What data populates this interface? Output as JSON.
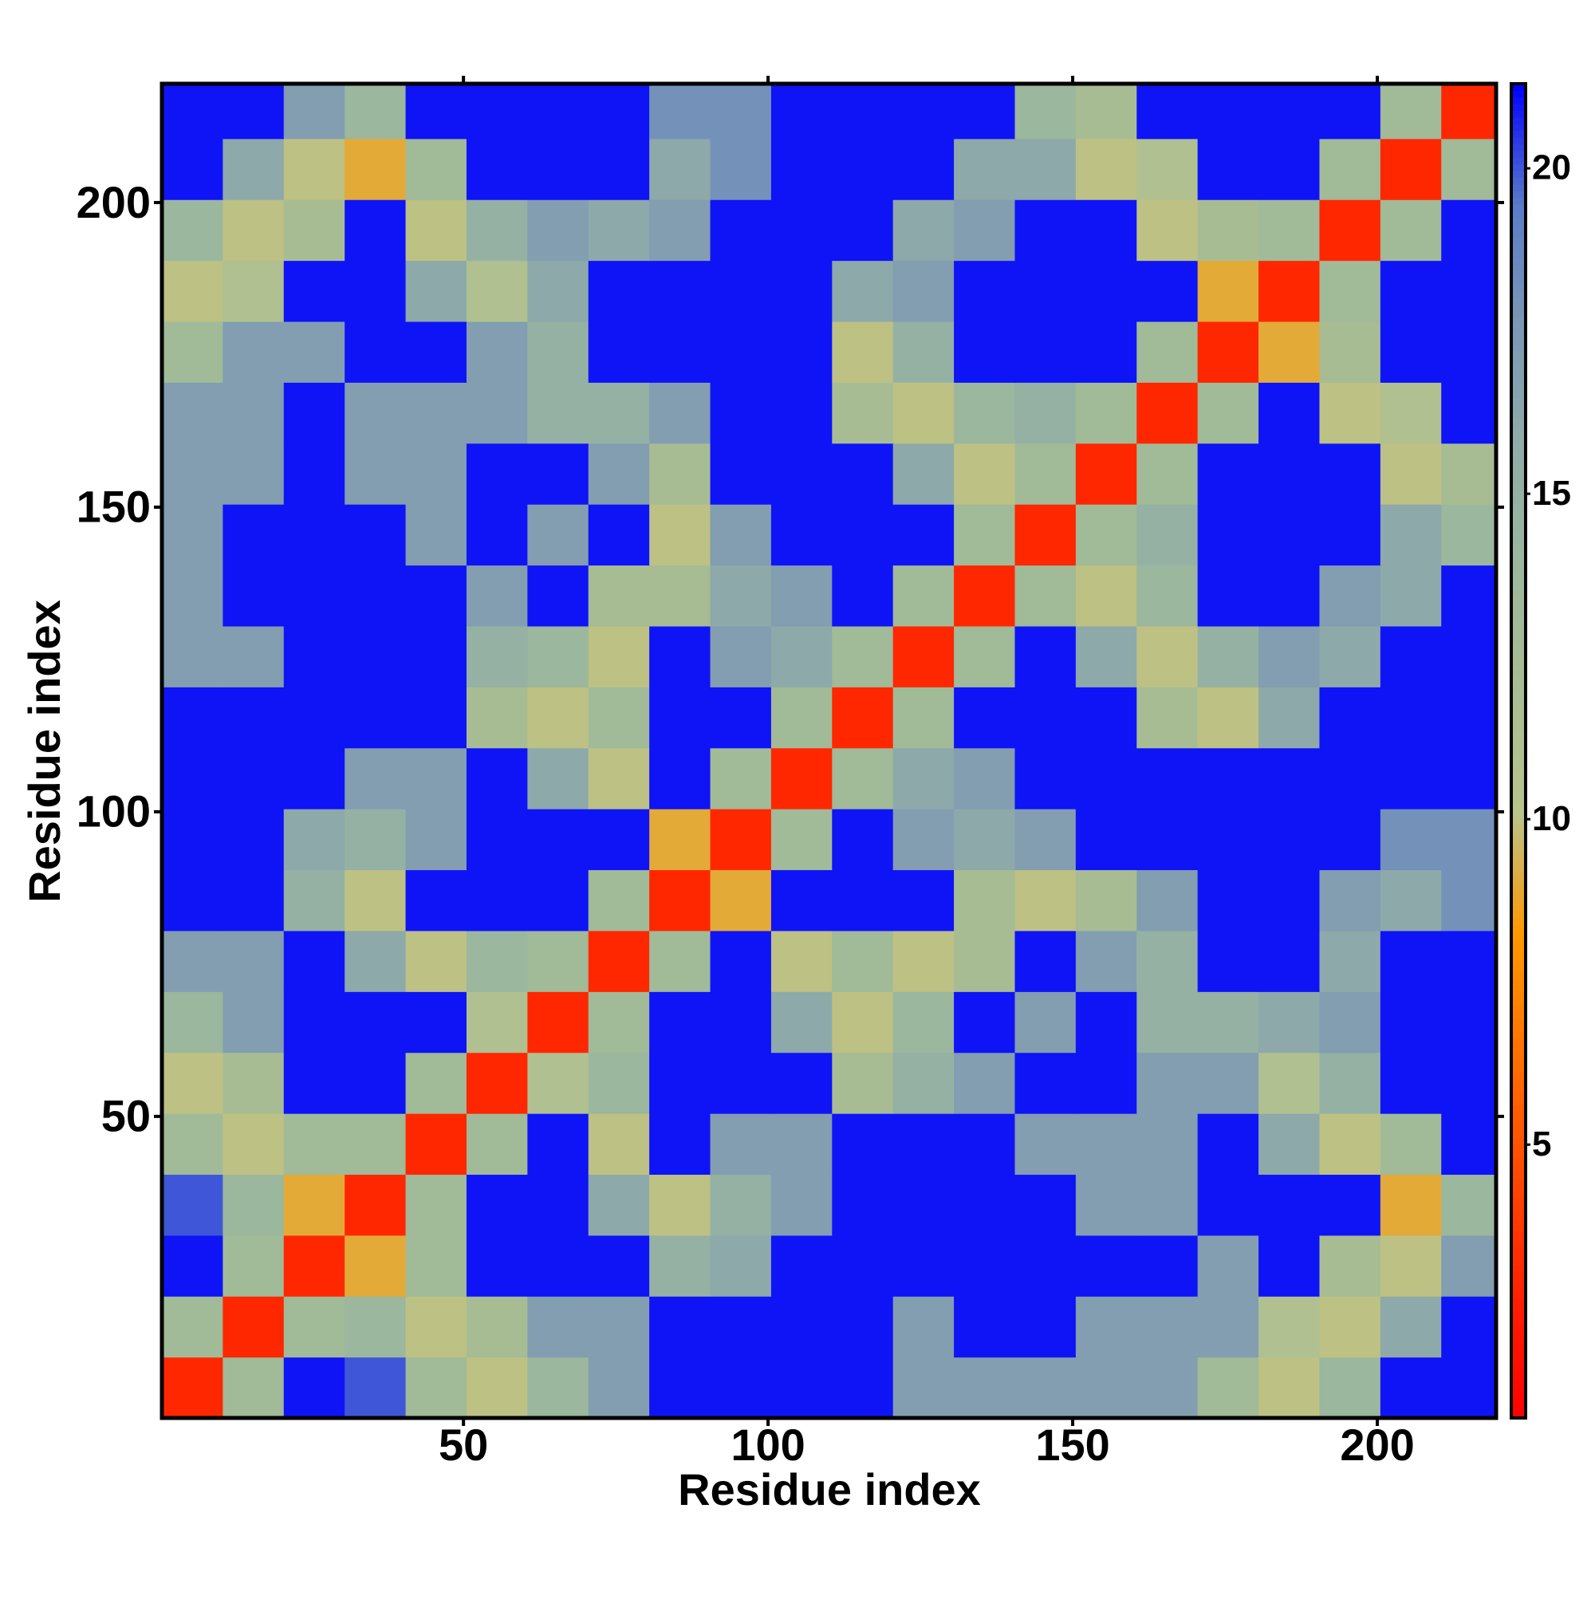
{
  "chart_data": {
    "type": "heatmap",
    "xlabel": "Residue index",
    "ylabel": "Residue index",
    "xlim": [
      0.5,
      219.5
    ],
    "ylim": [
      0.5,
      219.5
    ],
    "xticks": [
      50,
      100,
      150,
      200
    ],
    "yticks": [
      50,
      100,
      150,
      200
    ],
    "bins": [
      0.5,
      10.5,
      20.5,
      30.5,
      40.5,
      50.5,
      60.5,
      70.5,
      80.5,
      90.5,
      100.5,
      110.5,
      120.5,
      130.5,
      140.5,
      150.5,
      160.5,
      170.5,
      180.5,
      190.5,
      200.5,
      210.5,
      219.5
    ],
    "z": [
      [
        3,
        13,
        21,
        20,
        13,
        10,
        14,
        17,
        21,
        21,
        21,
        21,
        17,
        17,
        17,
        17,
        17,
        13,
        10,
        14,
        21,
        21
      ],
      [
        13,
        3,
        13,
        14,
        10,
        12,
        17,
        17,
        21,
        21,
        21,
        21,
        17,
        21,
        21,
        17,
        17,
        17,
        11,
        10,
        16,
        21
      ],
      [
        21,
        13,
        3,
        9,
        13,
        21,
        21,
        21,
        15,
        16,
        21,
        21,
        21,
        21,
        21,
        21,
        21,
        17,
        21,
        12,
        10,
        17
      ],
      [
        20,
        14,
        9,
        3,
        13,
        21,
        21,
        16,
        10,
        15,
        17,
        21,
        21,
        21,
        21,
        17,
        17,
        21,
        21,
        21,
        9,
        14
      ],
      [
        13,
        10,
        13,
        13,
        3,
        13,
        21,
        10,
        21,
        17,
        17,
        21,
        21,
        21,
        17,
        17,
        17,
        21,
        16,
        10,
        13,
        21
      ],
      [
        10,
        12,
        21,
        21,
        13,
        3,
        11,
        14,
        21,
        21,
        21,
        12,
        15,
        17,
        21,
        21,
        17,
        17,
        11,
        15,
        21,
        21
      ],
      [
        14,
        17,
        21,
        21,
        21,
        11,
        3,
        13,
        21,
        21,
        16,
        10,
        14,
        21,
        17,
        21,
        15,
        15,
        16,
        17,
        21,
        21
      ],
      [
        17,
        17,
        21,
        16,
        10,
        14,
        13,
        3,
        13,
        21,
        10,
        13,
        10,
        12,
        21,
        17,
        15,
        21,
        21,
        16,
        21,
        21
      ],
      [
        21,
        21,
        15,
        10,
        21,
        21,
        21,
        13,
        3,
        9,
        21,
        21,
        21,
        12,
        10,
        12,
        17,
        21,
        21,
        17,
        16,
        18
      ],
      [
        21,
        21,
        16,
        15,
        17,
        21,
        21,
        21,
        9,
        3,
        13,
        21,
        17,
        16,
        17,
        21,
        21,
        21,
        21,
        21,
        18,
        18
      ],
      [
        21,
        21,
        21,
        17,
        17,
        21,
        16,
        10,
        21,
        13,
        3,
        13,
        16,
        17,
        21,
        21,
        21,
        21,
        21,
        21,
        21,
        21
      ],
      [
        21,
        21,
        21,
        21,
        21,
        12,
        10,
        13,
        21,
        21,
        13,
        3,
        13,
        21,
        21,
        21,
        12,
        10,
        16,
        21,
        21,
        21
      ],
      [
        17,
        17,
        21,
        21,
        21,
        15,
        14,
        10,
        21,
        17,
        16,
        13,
        3,
        13,
        21,
        16,
        10,
        15,
        17,
        16,
        21,
        21
      ],
      [
        17,
        21,
        21,
        21,
        21,
        17,
        21,
        12,
        12,
        16,
        17,
        21,
        13,
        3,
        13,
        10,
        14,
        21,
        21,
        17,
        16,
        21
      ],
      [
        17,
        21,
        21,
        21,
        17,
        21,
        17,
        21,
        10,
        17,
        21,
        21,
        21,
        13,
        3,
        13,
        15,
        21,
        21,
        21,
        16,
        14
      ],
      [
        17,
        17,
        21,
        17,
        17,
        21,
        21,
        17,
        12,
        21,
        21,
        21,
        16,
        10,
        13,
        3,
        13,
        21,
        21,
        21,
        10,
        12
      ],
      [
        17,
        17,
        21,
        17,
        17,
        17,
        15,
        15,
        17,
        21,
        21,
        12,
        10,
        14,
        15,
        13,
        3,
        13,
        21,
        10,
        11,
        21
      ],
      [
        13,
        17,
        17,
        21,
        21,
        17,
        15,
        21,
        21,
        21,
        21,
        10,
        15,
        21,
        21,
        21,
        13,
        3,
        9,
        12,
        21,
        21
      ],
      [
        10,
        11,
        21,
        21,
        16,
        11,
        16,
        21,
        21,
        21,
        21,
        16,
        17,
        21,
        21,
        21,
        21,
        9,
        3,
        13,
        21,
        21
      ],
      [
        14,
        10,
        12,
        21,
        10,
        15,
        17,
        16,
        17,
        21,
        21,
        21,
        16,
        17,
        21,
        21,
        10,
        12,
        13,
        3,
        13,
        21
      ],
      [
        21,
        16,
        10,
        9,
        13,
        21,
        21,
        21,
        16,
        18,
        21,
        21,
        21,
        16,
        16,
        10,
        11,
        21,
        21,
        13,
        3,
        13
      ],
      [
        21,
        21,
        17,
        14,
        21,
        21,
        21,
        21,
        18,
        18,
        21,
        21,
        21,
        21,
        14,
        12,
        21,
        21,
        21,
        21,
        13,
        3
      ]
    ],
    "zlim": [
      0.8,
      21.3
    ],
    "zticks": [
      5,
      10,
      15,
      20
    ],
    "colorscale": [
      "#ff0000",
      "#ff2000",
      "#ff4800",
      "#ff7000",
      "#ff9800",
      "#b8c48c",
      "#a8bc94",
      "#9cb89c",
      "#90aca8",
      "#7c98b4",
      "#5a7cc8",
      "#0000ff"
    ]
  }
}
